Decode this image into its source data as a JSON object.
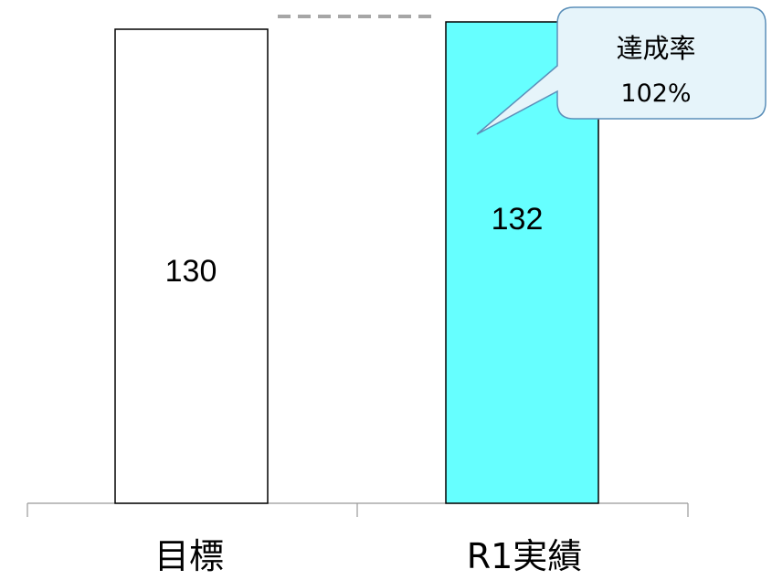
{
  "chart_data": {
    "type": "bar",
    "title": "",
    "xlabel": "",
    "ylabel": "",
    "categories": [
      "目標",
      "R1実績"
    ],
    "series": [
      {
        "values": [
          130,
          132
        ]
      }
    ],
    "ylim": [
      0,
      132
    ],
    "grid": false,
    "legend": "none",
    "colors": {
      "bars": [
        "#ffffff",
        "#66ffff"
      ],
      "outline": "#000000",
      "axis": "#999999",
      "reference_line": "#a6a6a6",
      "callout_fill": "#e6f4fa",
      "callout_stroke": "#5b8fb9"
    },
    "reference_line": {
      "style": "dashed",
      "at_value": 132
    },
    "annotation": {
      "line1": "達成率",
      "line2": "102%",
      "target_category": "R1実績"
    }
  }
}
